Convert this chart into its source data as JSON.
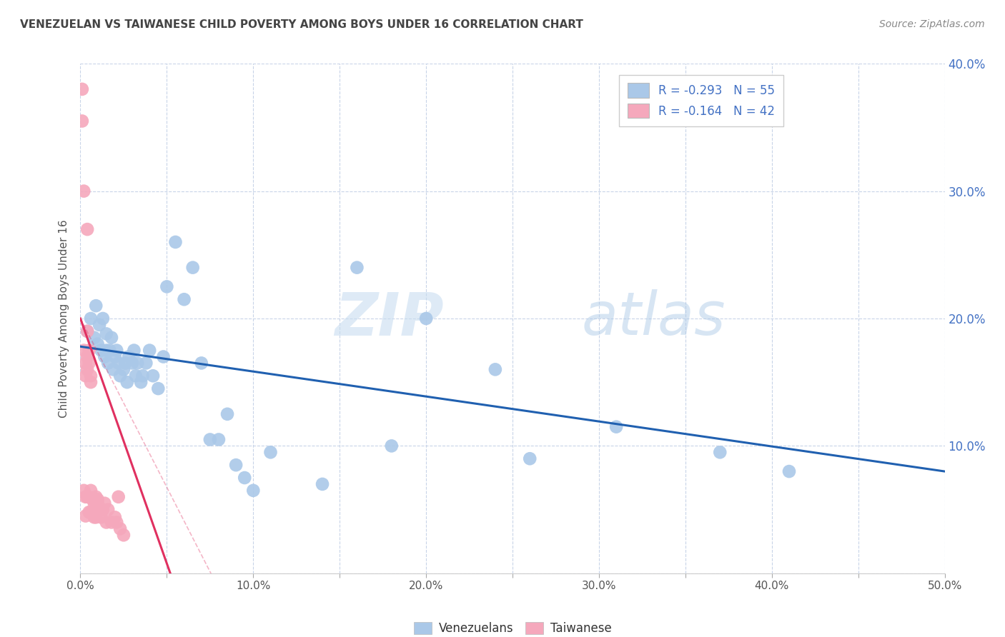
{
  "title": "VENEZUELAN VS TAIWANESE CHILD POVERTY AMONG BOYS UNDER 16 CORRELATION CHART",
  "source": "Source: ZipAtlas.com",
  "ylabel": "Child Poverty Among Boys Under 16",
  "watermark": "ZIPatlas",
  "xlim": [
    0.0,
    0.5
  ],
  "ylim": [
    0.0,
    0.4
  ],
  "xticks": [
    0.0,
    0.05,
    0.1,
    0.15,
    0.2,
    0.25,
    0.3,
    0.35,
    0.4,
    0.45,
    0.5
  ],
  "yticks": [
    0.0,
    0.1,
    0.2,
    0.3,
    0.4
  ],
  "xtick_labels": [
    "0.0%",
    "",
    "10.0%",
    "",
    "20.0%",
    "",
    "30.0%",
    "",
    "40.0%",
    "",
    "50.0%"
  ],
  "ytick_labels_right": [
    "",
    "10.0%",
    "20.0%",
    "30.0%",
    "40.0%"
  ],
  "legend1_label": "R = -0.293   N = 55",
  "legend2_label": "R = -0.164   N = 42",
  "legend_bottom1": "Venezuelans",
  "legend_bottom2": "Taiwanese",
  "blue_color": "#aac8e8",
  "pink_color": "#f5a8bc",
  "blue_line_color": "#2060b0",
  "pink_line_color": "#e03060",
  "grid_color": "#c8d4e8",
  "title_color": "#444444",
  "source_color": "#888888",
  "label_color": "#4472c4",
  "venezuelan_x": [
    0.004,
    0.006,
    0.008,
    0.009,
    0.01,
    0.011,
    0.012,
    0.013,
    0.014,
    0.015,
    0.015,
    0.016,
    0.017,
    0.018,
    0.019,
    0.02,
    0.021,
    0.022,
    0.023,
    0.025,
    0.026,
    0.027,
    0.028,
    0.03,
    0.031,
    0.032,
    0.033,
    0.035,
    0.036,
    0.038,
    0.04,
    0.042,
    0.045,
    0.048,
    0.05,
    0.055,
    0.06,
    0.065,
    0.07,
    0.075,
    0.08,
    0.085,
    0.09,
    0.095,
    0.1,
    0.11,
    0.14,
    0.16,
    0.2,
    0.26,
    0.31,
    0.37,
    0.41,
    0.18,
    0.24
  ],
  "venezuelan_y": [
    0.19,
    0.2,
    0.185,
    0.21,
    0.18,
    0.195,
    0.175,
    0.2,
    0.17,
    0.188,
    0.175,
    0.165,
    0.175,
    0.185,
    0.16,
    0.17,
    0.175,
    0.165,
    0.155,
    0.16,
    0.165,
    0.15,
    0.17,
    0.165,
    0.175,
    0.155,
    0.165,
    0.15,
    0.155,
    0.165,
    0.175,
    0.155,
    0.145,
    0.17,
    0.225,
    0.26,
    0.215,
    0.24,
    0.165,
    0.105,
    0.105,
    0.125,
    0.085,
    0.075,
    0.065,
    0.095,
    0.07,
    0.24,
    0.2,
    0.09,
    0.115,
    0.095,
    0.08,
    0.1,
    0.16
  ],
  "taiwanese_x": [
    0.001,
    0.001,
    0.002,
    0.002,
    0.002,
    0.003,
    0.003,
    0.003,
    0.003,
    0.004,
    0.004,
    0.004,
    0.004,
    0.004,
    0.005,
    0.005,
    0.005,
    0.005,
    0.006,
    0.006,
    0.006,
    0.006,
    0.007,
    0.007,
    0.008,
    0.008,
    0.009,
    0.009,
    0.01,
    0.01,
    0.011,
    0.012,
    0.013,
    0.014,
    0.015,
    0.016,
    0.018,
    0.02,
    0.021,
    0.022,
    0.023,
    0.025
  ],
  "taiwanese_y": [
    0.38,
    0.355,
    0.3,
    0.175,
    0.065,
    0.165,
    0.155,
    0.06,
    0.045,
    0.27,
    0.19,
    0.17,
    0.16,
    0.06,
    0.175,
    0.165,
    0.06,
    0.048,
    0.155,
    0.15,
    0.065,
    0.048,
    0.058,
    0.048,
    0.055,
    0.044,
    0.06,
    0.044,
    0.055,
    0.058,
    0.05,
    0.044,
    0.05,
    0.055,
    0.04,
    0.05,
    0.04,
    0.044,
    0.04,
    0.06,
    0.035,
    0.03
  ],
  "blue_trend_x": [
    0.0,
    0.5
  ],
  "blue_trend_y": [
    0.178,
    0.08
  ],
  "pink_trend_x": [
    0.0,
    0.052
  ],
  "pink_trend_y": [
    0.2,
    0.0
  ]
}
